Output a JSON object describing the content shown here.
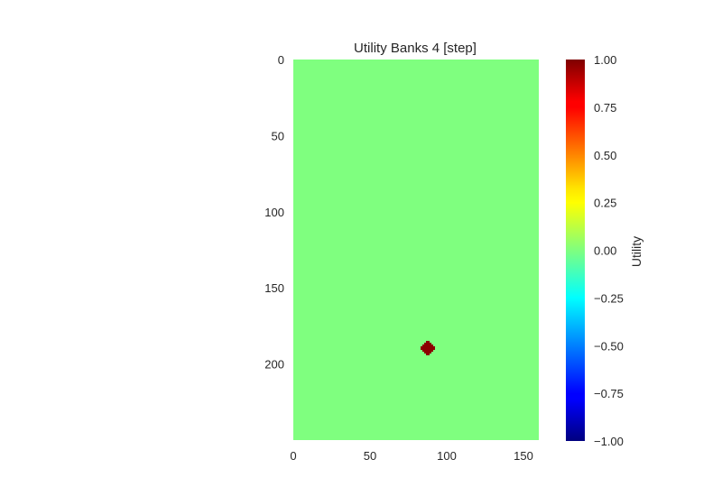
{
  "chart_data": {
    "type": "heatmap",
    "title": "Utility Banks 4 [step]",
    "xlabel": "",
    "ylabel": "",
    "xlim": [
      0,
      160
    ],
    "ylim": [
      250,
      0
    ],
    "x_ticks": [
      "0",
      "50",
      "100",
      "150"
    ],
    "y_ticks": [
      "0",
      "50",
      "100",
      "150",
      "200"
    ],
    "grid": false,
    "colormap": "jet",
    "background_value": 0.0,
    "hotspot": {
      "x": 88,
      "y": 189,
      "value": 1.0,
      "color": "#8b0000"
    },
    "colorbar": {
      "label": "Utility",
      "range": [
        -1.0,
        1.0
      ],
      "ticks": [
        "1.00",
        "0.75",
        "0.50",
        "0.25",
        "0.00",
        "−0.25",
        "−0.50",
        "−0.75",
        "−1.00"
      ]
    },
    "colors": {
      "background_field": "#7fff7f"
    }
  }
}
